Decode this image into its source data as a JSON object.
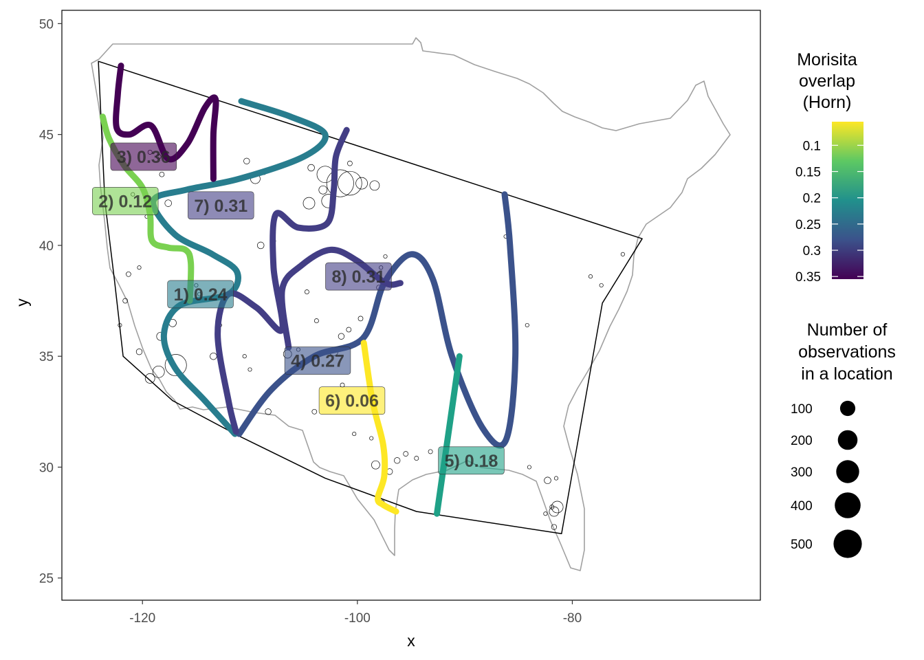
{
  "chart_data": {
    "type": "scatter",
    "xlabel": "x",
    "ylabel": "y",
    "xlim": [
      -127.5,
      -62.5
    ],
    "ylim": [
      24,
      50.6
    ],
    "x_ticks": [
      -120,
      -100,
      -80
    ],
    "x_tick_labels": [
      "-120",
      "-100",
      "-80"
    ],
    "y_ticks": [
      25,
      30,
      35,
      40,
      45,
      50
    ],
    "y_tick_labels": [
      "25",
      "30",
      "35",
      "40",
      "45",
      "50"
    ],
    "grid": false,
    "legend_color": {
      "title": [
        "Morisita",
        "overlap",
        "(Horn)"
      ],
      "range": [
        0.055,
        0.355
      ],
      "ticks": [
        0.1,
        0.15,
        0.2,
        0.25,
        0.3,
        0.35
      ],
      "tick_labels": [
        "0.1",
        "0.15",
        "0.2",
        "0.25",
        "0.3",
        "0.35"
      ],
      "palette": [
        "#440154",
        "#3b528b",
        "#21908c",
        "#5dc863",
        "#fde725"
      ]
    },
    "legend_size": {
      "title": [
        "Number of",
        "observations",
        "in a location"
      ],
      "values": [
        100,
        200,
        300,
        400,
        500
      ],
      "labels": [
        "100",
        "200",
        "300",
        "400",
        "500"
      ]
    },
    "hull": [
      [
        -124.1,
        48.3
      ],
      [
        -73.5,
        40.3
      ],
      [
        -77.2,
        37.4
      ],
      [
        -81.0,
        27.0
      ],
      [
        -94.5,
        28.0
      ],
      [
        -103.0,
        29.5
      ],
      [
        -111.0,
        31.4
      ],
      [
        -117.2,
        33.0
      ],
      [
        -121.8,
        35.0
      ],
      [
        -122.6,
        38.4
      ],
      [
        -123.5,
        42.0
      ]
    ],
    "transects": [
      {
        "label": "1) 0.24",
        "value": 0.24,
        "color": "#287d8e",
        "path": [
          [
            -110.8,
            46.5
          ],
          [
            -106.2,
            45.8
          ],
          [
            -103.0,
            45.0
          ],
          [
            -105.0,
            44.0
          ],
          [
            -111.0,
            43.0
          ],
          [
            -116.0,
            42.5
          ],
          [
            -119.0,
            42.0
          ],
          [
            -117.0,
            40.5
          ],
          [
            -113.5,
            39.6
          ],
          [
            -111.2,
            38.8
          ],
          [
            -112.0,
            37.8
          ],
          [
            -116.5,
            37.3
          ],
          [
            -118.0,
            36.0
          ],
          [
            -117.0,
            34.5
          ],
          [
            -114.2,
            33.0
          ],
          [
            -111.4,
            31.5
          ]
        ],
        "label_pos": [
          -114.6,
          37.8
        ]
      },
      {
        "label": "2) 0.12",
        "value": 0.12,
        "color": "#7ad151",
        "path": [
          [
            -123.7,
            45.8
          ],
          [
            -123.1,
            44.8
          ],
          [
            -121.7,
            43.6
          ],
          [
            -120.0,
            42.6
          ],
          [
            -119.3,
            41.4
          ],
          [
            -119.1,
            40.2
          ],
          [
            -117.6,
            39.9
          ],
          [
            -116.0,
            39.8
          ],
          [
            -115.5,
            39.2
          ],
          [
            -115.6,
            37.5
          ]
        ],
        "label_pos": [
          -121.6,
          42.0
        ]
      },
      {
        "label": "3) 0.36",
        "value": 0.36,
        "color": "#440154",
        "path": [
          [
            -122.0,
            48.1
          ],
          [
            -122.3,
            46.8
          ],
          [
            -122.4,
            45.3
          ],
          [
            -121.2,
            45.0
          ],
          [
            -119.2,
            45.4
          ],
          [
            -117.6,
            43.9
          ],
          [
            -115.8,
            44.6
          ],
          [
            -114.2,
            46.2
          ],
          [
            -113.2,
            46.6
          ],
          [
            -113.4,
            45.0
          ],
          [
            -113.4,
            43.0
          ]
        ],
        "label_pos": [
          -119.9,
          44.0
        ]
      },
      {
        "label": "4) 0.27",
        "value": 0.27,
        "color": "#3b528b",
        "path": [
          [
            -111.0,
            31.5
          ],
          [
            -108.0,
            33.5
          ],
          [
            -104.0,
            35.0
          ],
          [
            -99.5,
            35.8
          ],
          [
            -97.5,
            38.3
          ],
          [
            -95.0,
            39.6
          ],
          [
            -93.0,
            38.5
          ],
          [
            -91.2,
            35.0
          ],
          [
            -88.4,
            31.8
          ],
          [
            -86.2,
            31.2
          ],
          [
            -85.3,
            35.0
          ],
          [
            -85.8,
            40.0
          ],
          [
            -86.3,
            42.3
          ]
        ],
        "label_pos": [
          -103.7,
          34.8
        ]
      },
      {
        "label": "5) 0.18",
        "value": 0.18,
        "color": "#1fa187",
        "path": [
          [
            -92.6,
            27.9
          ],
          [
            -90.5,
            35.0
          ]
        ],
        "label_pos": [
          -89.4,
          30.3
        ]
      },
      {
        "label": "6) 0.06",
        "value": 0.06,
        "color": "#fde725",
        "path": [
          [
            -99.4,
            35.6
          ],
          [
            -98.6,
            33.0
          ],
          [
            -97.6,
            31.0
          ],
          [
            -97.5,
            29.6
          ],
          [
            -98.1,
            28.6
          ],
          [
            -97.6,
            28.3
          ],
          [
            -96.4,
            28.0
          ]
        ],
        "label_pos": [
          -100.5,
          33.0
        ]
      },
      {
        "label": "7) 0.31",
        "value": 0.31,
        "color": "#433e85",
        "path": [
          [
            -101.0,
            45.2
          ],
          [
            -102.0,
            44.0
          ],
          [
            -102.2,
            42.5
          ],
          [
            -102.8,
            41.0
          ],
          [
            -105.5,
            40.8
          ],
          [
            -107.6,
            41.4
          ],
          [
            -107.8,
            39.0
          ],
          [
            -107.0,
            36.2
          ],
          [
            -109.4,
            37.2
          ],
          [
            -112.0,
            37.8
          ],
          [
            -113.0,
            36.0
          ],
          [
            -112.0,
            33.0
          ],
          [
            -111.3,
            31.6
          ]
        ],
        "label_pos": [
          -112.7,
          41.8
        ]
      },
      {
        "label": "8) 0.31",
        "value": 0.31,
        "color": "#433e85",
        "path": [
          [
            -106.4,
            35.4
          ],
          [
            -107.0,
            38.0
          ],
          [
            -105.2,
            39.1
          ],
          [
            -102.5,
            39.8
          ],
          [
            -100.0,
            39.3
          ],
          [
            -97.4,
            38.3
          ],
          [
            -96.0,
            38.3
          ]
        ],
        "label_pos": [
          -99.9,
          38.6
        ]
      }
    ],
    "observations": [
      [
        -103.0,
        43.2,
        120
      ],
      [
        -101.6,
        42.8,
        320
      ],
      [
        -100.7,
        42.8,
        250
      ],
      [
        -99.6,
        42.8,
        60
      ],
      [
        -98.4,
        42.7,
        40
      ],
      [
        -102.7,
        42.0,
        80
      ],
      [
        -103.2,
        42.5,
        30
      ],
      [
        -104.5,
        41.9,
        60
      ],
      [
        -104.3,
        43.5,
        20
      ],
      [
        -100.7,
        43.7,
        10
      ],
      [
        -116.9,
        34.6,
        200
      ],
      [
        -118.5,
        34.3,
        60
      ],
      [
        -119.3,
        34.0,
        40
      ],
      [
        -120.3,
        35.2,
        15
      ],
      [
        -118.3,
        35.9,
        30
      ],
      [
        -117.2,
        36.5,
        25
      ],
      [
        -117.6,
        41.9,
        20
      ],
      [
        -118.2,
        43.2,
        10
      ],
      [
        -118.5,
        44.0,
        10
      ],
      [
        -119.3,
        44.2,
        8
      ],
      [
        -110.3,
        43.8,
        15
      ],
      [
        -109.5,
        43.0,
        40
      ],
      [
        -108.7,
        43.3,
        10
      ],
      [
        -109.0,
        40.0,
        20
      ],
      [
        -107.8,
        40.2,
        8
      ],
      [
        -103.8,
        36.6,
        8
      ],
      [
        -102.2,
        35.2,
        30
      ],
      [
        -101.5,
        35.9,
        15
      ],
      [
        -100.8,
        36.2,
        10
      ],
      [
        -99.7,
        36.7,
        10
      ],
      [
        -98.0,
        38.1,
        10
      ],
      [
        -97.8,
        39.0,
        6
      ],
      [
        -97.4,
        39.5,
        6
      ],
      [
        -106.5,
        35.1,
        30
      ],
      [
        -105.5,
        35.3,
        6
      ],
      [
        -104.0,
        32.5,
        10
      ],
      [
        -101.4,
        33.7,
        8
      ],
      [
        -100.3,
        31.5,
        6
      ],
      [
        -98.7,
        31.3,
        6
      ],
      [
        -98.3,
        30.1,
        30
      ],
      [
        -97.0,
        29.8,
        15
      ],
      [
        -96.3,
        30.3,
        15
      ],
      [
        -95.5,
        30.6,
        10
      ],
      [
        -94.5,
        30.4,
        8
      ],
      [
        -93.2,
        30.7,
        8
      ],
      [
        -97.7,
        28.4,
        10
      ],
      [
        -87.6,
        30.3,
        6
      ],
      [
        -84.0,
        30.0,
        6
      ],
      [
        -82.3,
        29.4,
        20
      ],
      [
        -81.9,
        28.2,
        8
      ],
      [
        -81.7,
        27.3,
        12
      ],
      [
        -81.7,
        28.0,
        40
      ],
      [
        -81.4,
        28.2,
        60
      ],
      [
        -82.5,
        27.9,
        6
      ],
      [
        -81.5,
        29.5,
        6
      ],
      [
        -84.2,
        36.4,
        6
      ],
      [
        -86.2,
        40.4,
        6
      ],
      [
        -78.3,
        38.6,
        6
      ],
      [
        -77.3,
        38.2,
        6
      ],
      [
        -75.3,
        39.6,
        6
      ],
      [
        -121.3,
        38.7,
        10
      ],
      [
        -120.3,
        39.0,
        6
      ],
      [
        -121.6,
        37.5,
        10
      ],
      [
        -122.1,
        36.4,
        6
      ],
      [
        -119.6,
        41.3,
        6
      ],
      [
        -120.9,
        42.3,
        6
      ],
      [
        -115.0,
        38.2,
        6
      ],
      [
        -114.7,
        37.8,
        6
      ],
      [
        -113.4,
        35.0,
        20
      ],
      [
        -112.8,
        36.4,
        6
      ],
      [
        -110.5,
        35.0,
        6
      ],
      [
        -110.0,
        34.4,
        6
      ],
      [
        -108.3,
        32.5,
        15
      ],
      [
        -106.8,
        36.5,
        6
      ],
      [
        -104.7,
        37.9,
        8
      ]
    ]
  }
}
